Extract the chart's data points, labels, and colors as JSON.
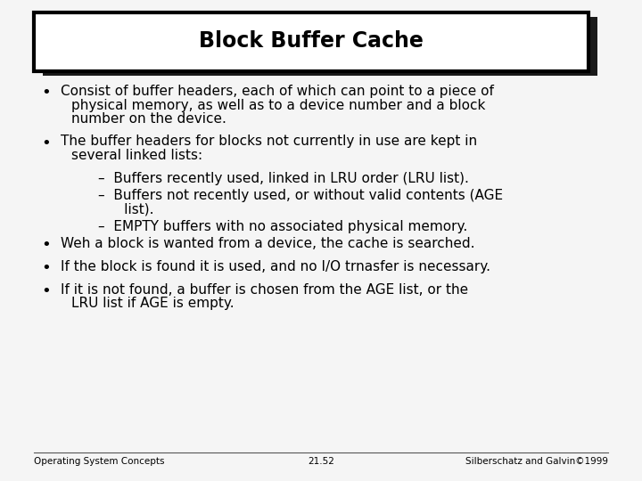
{
  "title": "Block Buffer Cache",
  "background_color": "#e8e8e8",
  "slide_bg": "#f5f5f5",
  "title_font_size": 17,
  "body_font_size": 11,
  "footer_font_size": 7.5,
  "footer_left": "Operating System Concepts",
  "footer_center": "21.52",
  "footer_right": "Silberschatz and Galvin©1999",
  "content_items": [
    {
      "level": 0,
      "lines": [
        "Consist of buffer headers, each of which can point to a piece of",
        "physical memory, as well as to a device number and a block",
        "number on the device."
      ]
    },
    {
      "level": 0,
      "lines": [
        "The buffer headers for blocks not currently in use are kept in",
        "several linked lists:"
      ]
    },
    {
      "level": 1,
      "lines": [
        "–  Buffers recently used, linked in LRU order (LRU list)."
      ]
    },
    {
      "level": 1,
      "lines": [
        "–  Buffers not recently used, or without valid contents (AGE",
        "      list)."
      ]
    },
    {
      "level": 1,
      "lines": [
        "–  EMPTY buffers with no associated physical memory."
      ]
    },
    {
      "level": 0,
      "lines": [
        "Weh a block is wanted from a device, the cache is searched."
      ]
    },
    {
      "level": 0,
      "lines": [
        "If the block is found it is used, and no I/O trnasfer is necessary."
      ]
    },
    {
      "level": 0,
      "lines": [
        "If it is not found, a buffer is chosen from the AGE list, or the",
        "LRU list if AGE is empty."
      ]
    }
  ]
}
